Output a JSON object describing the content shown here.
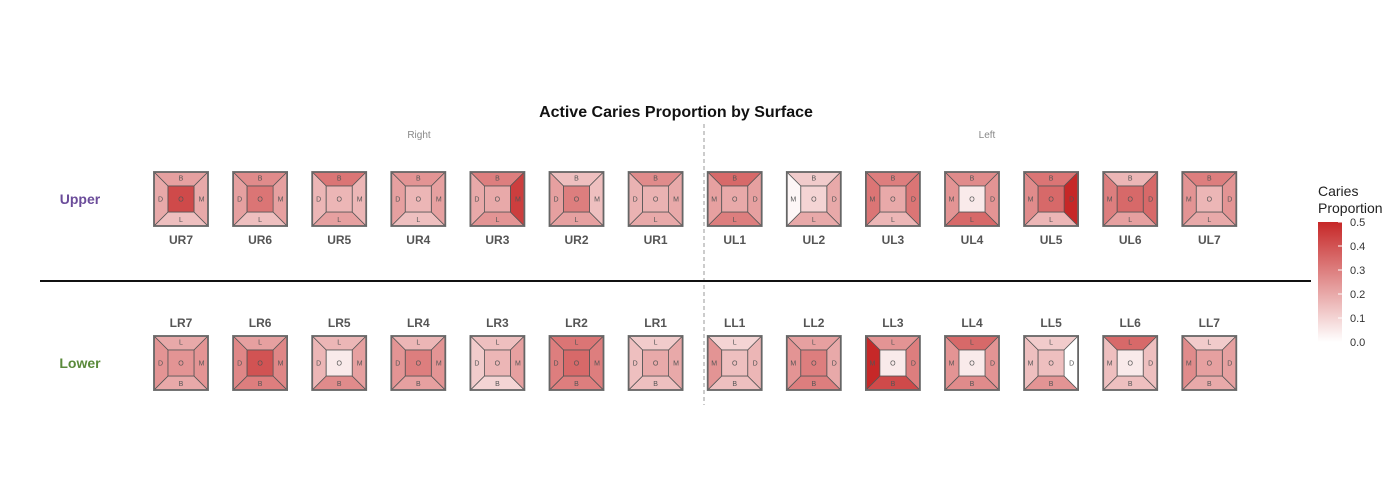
{
  "chart_data": {
    "type": "heatmap",
    "title": "Active Caries Proportion by Surface",
    "side_labels": {
      "right": "Right",
      "left": "Left"
    },
    "row_labels": {
      "upper": "Upper",
      "lower": "Lower"
    },
    "row_label_colors": {
      "upper": "#6b4c9a",
      "lower": "#5a8a3a"
    },
    "legend": {
      "title_line1": "Caries",
      "title_line2": "Proportion",
      "ticks": [
        "0.5",
        "0.4",
        "0.3",
        "0.2",
        "0.1",
        "0.0"
      ],
      "range": [
        0,
        0.5
      ]
    },
    "color_scale": {
      "low": "#ffffff",
      "high": "#c62828"
    },
    "upper": [
      {
        "tooth": "UR7",
        "orient": "R",
        "B": 0.22,
        "L": 0.15,
        "D": 0.2,
        "M": 0.2,
        "O": 0.42
      },
      {
        "tooth": "UR6",
        "orient": "R",
        "B": 0.27,
        "L": 0.15,
        "D": 0.22,
        "M": 0.22,
        "O": 0.32
      },
      {
        "tooth": "UR5",
        "orient": "R",
        "B": 0.32,
        "L": 0.22,
        "D": 0.17,
        "M": 0.17,
        "O": 0.17
      },
      {
        "tooth": "UR4",
        "orient": "R",
        "B": 0.25,
        "L": 0.15,
        "D": 0.22,
        "M": 0.22,
        "O": 0.17
      },
      {
        "tooth": "UR3",
        "orient": "R",
        "B": 0.3,
        "L": 0.25,
        "D": 0.2,
        "M": 0.45,
        "O": 0.2
      },
      {
        "tooth": "UR2",
        "orient": "R",
        "B": 0.15,
        "L": 0.22,
        "D": 0.22,
        "M": 0.15,
        "O": 0.3
      },
      {
        "tooth": "UR1",
        "orient": "R",
        "B": 0.27,
        "L": 0.2,
        "D": 0.18,
        "M": 0.2,
        "O": 0.18
      },
      {
        "tooth": "UL1",
        "orient": "L",
        "B": 0.35,
        "L": 0.3,
        "M": 0.22,
        "D": 0.22,
        "O": 0.2
      },
      {
        "tooth": "UL2",
        "orient": "L",
        "B": 0.12,
        "L": 0.2,
        "M": 0.02,
        "D": 0.2,
        "O": 0.1
      },
      {
        "tooth": "UL3",
        "orient": "L",
        "B": 0.3,
        "L": 0.17,
        "M": 0.32,
        "D": 0.32,
        "O": 0.2
      },
      {
        "tooth": "UL4",
        "orient": "L",
        "B": 0.27,
        "L": 0.35,
        "M": 0.25,
        "D": 0.25,
        "O": 0.05
      },
      {
        "tooth": "UL5",
        "orient": "L",
        "B": 0.32,
        "L": 0.17,
        "M": 0.27,
        "D": 0.5,
        "O": 0.35
      },
      {
        "tooth": "UL6",
        "orient": "L",
        "B": 0.17,
        "L": 0.22,
        "M": 0.3,
        "D": 0.35,
        "O": 0.35
      },
      {
        "tooth": "UL7",
        "orient": "L",
        "B": 0.3,
        "L": 0.2,
        "M": 0.25,
        "D": 0.25,
        "O": 0.17
      }
    ],
    "lower": [
      {
        "tooth": "LR7",
        "orient": "R",
        "L": 0.2,
        "B": 0.2,
        "D": 0.25,
        "M": 0.25,
        "O": 0.25
      },
      {
        "tooth": "LR6",
        "orient": "R",
        "L": 0.22,
        "B": 0.3,
        "D": 0.28,
        "M": 0.28,
        "O": 0.4
      },
      {
        "tooth": "LR5",
        "orient": "R",
        "L": 0.17,
        "B": 0.27,
        "D": 0.17,
        "M": 0.22,
        "O": 0.05
      },
      {
        "tooth": "LR4",
        "orient": "R",
        "L": 0.17,
        "B": 0.22,
        "D": 0.25,
        "M": 0.25,
        "O": 0.3
      },
      {
        "tooth": "LR3",
        "orient": "R",
        "L": 0.15,
        "B": 0.1,
        "D": 0.12,
        "M": 0.22,
        "O": 0.17
      },
      {
        "tooth": "LR2",
        "orient": "R",
        "L": 0.32,
        "B": 0.3,
        "D": 0.3,
        "M": 0.3,
        "O": 0.35
      },
      {
        "tooth": "LR1",
        "orient": "R",
        "L": 0.12,
        "B": 0.15,
        "D": 0.15,
        "M": 0.2,
        "O": 0.2
      },
      {
        "tooth": "LL1",
        "orient": "L",
        "L": 0.1,
        "B": 0.15,
        "M": 0.25,
        "D": 0.17,
        "O": 0.15
      },
      {
        "tooth": "LL2",
        "orient": "L",
        "L": 0.22,
        "B": 0.3,
        "M": 0.25,
        "D": 0.2,
        "O": 0.3
      },
      {
        "tooth": "LL3",
        "orient": "L",
        "L": 0.25,
        "B": 0.42,
        "M": 0.5,
        "D": 0.3,
        "O": 0.05
      },
      {
        "tooth": "LL4",
        "orient": "L",
        "L": 0.35,
        "B": 0.27,
        "M": 0.25,
        "D": 0.25,
        "O": 0.05
      },
      {
        "tooth": "LL5",
        "orient": "L",
        "L": 0.12,
        "B": 0.25,
        "M": 0.15,
        "D": 0.0,
        "O": 0.15
      },
      {
        "tooth": "LL6",
        "orient": "L",
        "L": 0.35,
        "B": 0.15,
        "M": 0.15,
        "D": 0.15,
        "O": 0.05
      },
      {
        "tooth": "LL7",
        "orient": "L",
        "L": 0.12,
        "B": 0.2,
        "M": 0.27,
        "D": 0.22,
        "O": 0.22
      }
    ]
  }
}
